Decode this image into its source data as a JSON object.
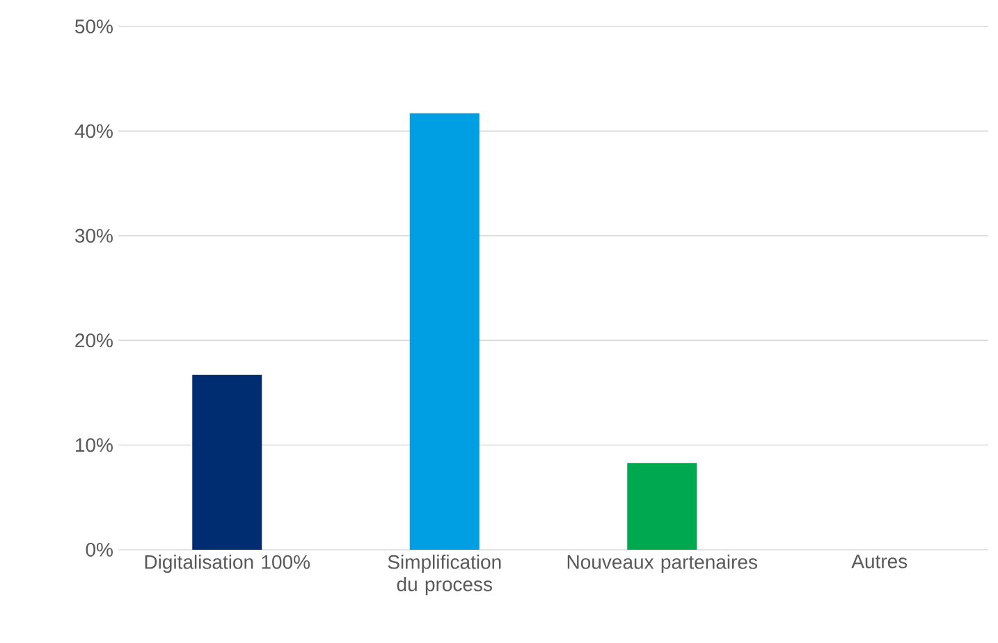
{
  "chart_data": {
    "type": "bar",
    "categories": [
      "Digitalisation 100%",
      "Simplification du process",
      "Nouveaux partenaires",
      "Autres"
    ],
    "values": [
      16.7,
      41.7,
      8.3,
      0
    ],
    "colors": [
      "#002d72",
      "#009fe3",
      "#00a94f",
      "#7f7f7f"
    ],
    "ylim": [
      0,
      50
    ],
    "yticks": [
      {
        "value": 0,
        "label": "0%"
      },
      {
        "value": 10,
        "label": "10%"
      },
      {
        "value": 20,
        "label": "20%"
      },
      {
        "value": 30,
        "label": "30%"
      },
      {
        "value": 40,
        "label": "40%"
      },
      {
        "value": 50,
        "label": "50%"
      }
    ],
    "grid": "y"
  }
}
